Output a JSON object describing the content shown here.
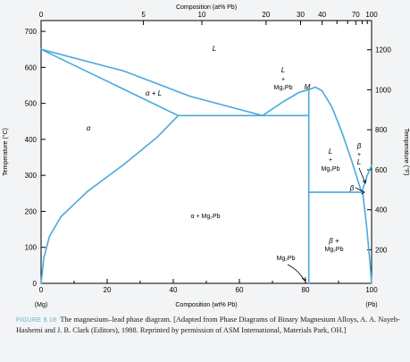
{
  "figure": {
    "label": "FIGURE 9.18",
    "caption": "The magnesium–lead phase diagram. [Adapted from Phase Diagrams of Binary Magnesium Alloys, A. A. Nayeb-Hashemi and J. B. Clark (Editors), 1988. Reprinted by permission of ASM International, Materials Park, OH.]"
  },
  "chart_data": {
    "type": "phase-diagram",
    "title": "",
    "top_axis": {
      "label": "Composition (at% Pb)",
      "ticks": [
        0,
        5,
        10,
        20,
        30,
        40,
        70,
        100
      ]
    },
    "bottom_axis": {
      "label": "Composition (wt% Pb)",
      "ticks": [
        0,
        20,
        40,
        60,
        80,
        100
      ],
      "ends": {
        "left": "(Mg)",
        "right": "(Pb)"
      },
      "range": [
        0,
        100
      ]
    },
    "left_axis": {
      "label": "Temperature (°C)",
      "ticks": [
        0,
        100,
        200,
        300,
        400,
        500,
        600,
        700
      ],
      "range": [
        0,
        730
      ]
    },
    "right_axis": {
      "label": "Temperature (°F)",
      "ticks": [
        200,
        400,
        600,
        800,
        1000,
        1200
      ]
    },
    "regions": [
      {
        "id": "L",
        "text": "L"
      },
      {
        "id": "alpha-L",
        "text": "α + L"
      },
      {
        "id": "alpha",
        "text": "α"
      },
      {
        "id": "L-Mg2Pb-left",
        "lines": [
          "L",
          "+",
          "Mg₂Pb"
        ]
      },
      {
        "id": "M",
        "text": "M"
      },
      {
        "id": "L-Mg2Pb-right",
        "lines": [
          "L",
          "+",
          "Mg₂Pb"
        ]
      },
      {
        "id": "alpha-Mg2Pb",
        "text": "α + Mg₂Pb"
      },
      {
        "id": "beta-L",
        "lines": [
          "β",
          "+",
          "L"
        ]
      },
      {
        "id": "beta",
        "text": "β"
      },
      {
        "id": "beta-Mg2Pb",
        "lines": [
          "β +",
          "Mg₂Pb"
        ]
      },
      {
        "id": "Mg2Pb-label",
        "text": "Mg₂Pb"
      }
    ],
    "curves": [
      {
        "name": "alpha-liquidus",
        "points": [
          [
            0,
            650
          ],
          [
            25,
            590
          ],
          [
            45,
            520
          ],
          [
            67,
            466
          ]
        ]
      },
      {
        "name": "alpha-solidus",
        "points": [
          [
            0,
            650
          ],
          [
            41.5,
            466
          ]
        ]
      },
      {
        "name": "alpha-solvus",
        "points": [
          [
            0,
            0
          ],
          [
            0.8,
            70
          ],
          [
            2.5,
            130
          ],
          [
            6,
            185
          ],
          [
            14,
            255
          ],
          [
            25,
            330
          ],
          [
            35,
            405
          ],
          [
            41.5,
            466
          ]
        ]
      },
      {
        "name": "eutectic-1",
        "points": [
          [
            41.5,
            466
          ],
          [
            81,
            466
          ]
        ]
      },
      {
        "name": "Mg2Pb-liquidus-left",
        "points": [
          [
            67,
            466
          ],
          [
            73,
            503
          ],
          [
            78,
            530
          ],
          [
            81,
            538
          ]
        ]
      },
      {
        "name": "Mg2Pb-liquidus-right",
        "points": [
          [
            81,
            538
          ],
          [
            83,
            545
          ],
          [
            85,
            535
          ],
          [
            88,
            490
          ],
          [
            91,
            420
          ],
          [
            94,
            340
          ],
          [
            97,
            252
          ]
        ]
      },
      {
        "name": "Mg2Pb-compound",
        "points": [
          [
            81,
            0
          ],
          [
            81,
            538
          ]
        ]
      },
      {
        "name": "eutectic-2",
        "points": [
          [
            81,
            253
          ],
          [
            97.3,
            253
          ]
        ]
      },
      {
        "name": "Pb-liquidus",
        "points": [
          [
            97,
            252
          ],
          [
            98.5,
            295
          ],
          [
            100,
            327
          ]
        ]
      },
      {
        "name": "beta-solvus",
        "points": [
          [
            97.3,
            253
          ],
          [
            98.5,
            160
          ],
          [
            99.5,
            60
          ],
          [
            100,
            0
          ]
        ]
      }
    ],
    "point_label": {
      "text": "M",
      "x": 82,
      "y": 550
    },
    "grid": false
  }
}
